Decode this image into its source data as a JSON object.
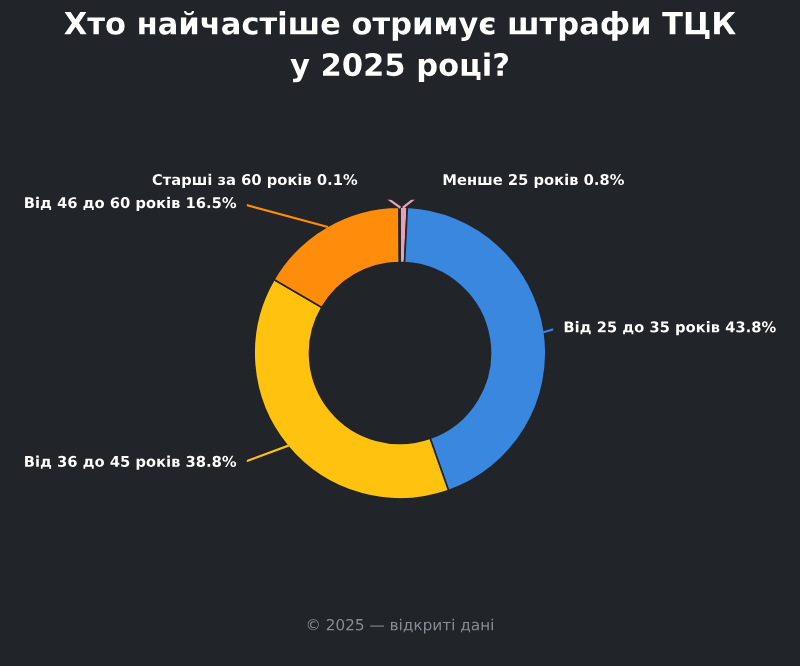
{
  "chart_data": {
    "type": "donut",
    "title": "Хто найчастіше отримує штрафи ТЦК\nу 2025 році?",
    "categories": [
      "Менше 25 років",
      "Від 25 до 35 років",
      "Від 36 до 45 років",
      "Від 46 до 60 років",
      "Старші за 60 років"
    ],
    "values": [
      0.8,
      43.8,
      38.8,
      16.5,
      0.1
    ],
    "colors": [
      "#e8a0b4",
      "#3a87e0",
      "#ffc20e",
      "#ff8c0a",
      "#e8a0b4"
    ],
    "value_labels": [
      "0.8%",
      "43.8%",
      "38.8%",
      "16.5%",
      "0.1%"
    ],
    "annotations": [
      "© 2025 — відкриті дані"
    ],
    "legend": false
  }
}
